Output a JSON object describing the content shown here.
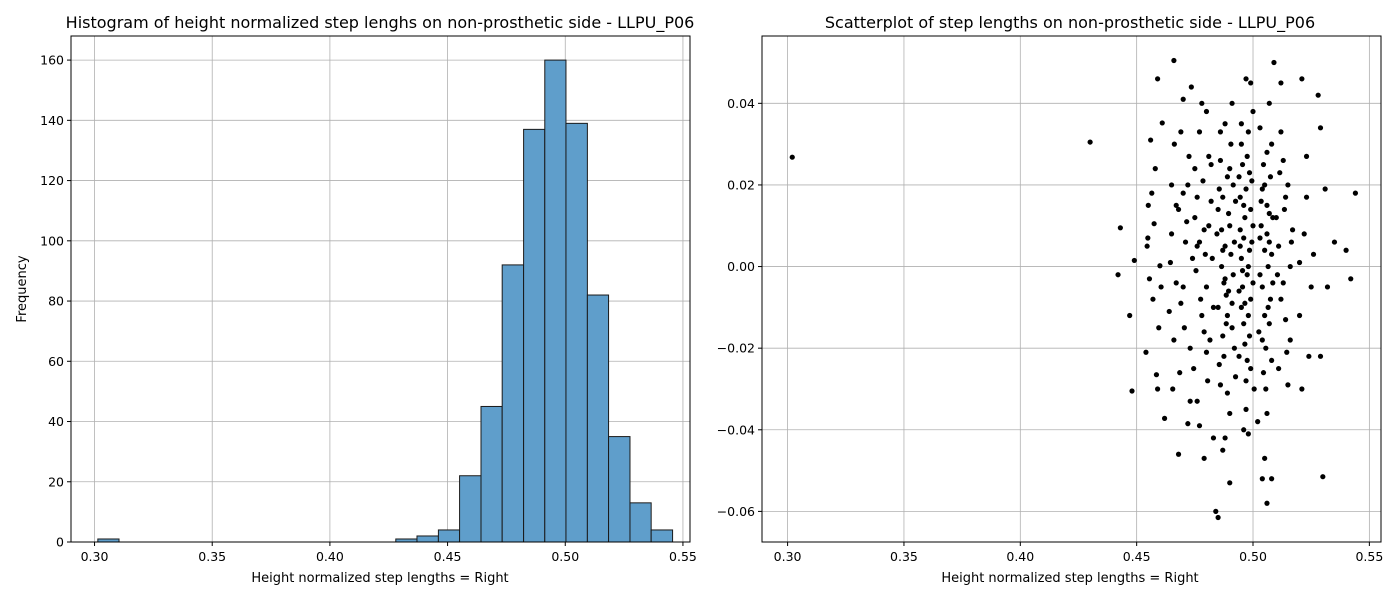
{
  "colors": {
    "bar_fill": "#5f9ecb",
    "bar_edge": "#1a1a1a",
    "point": "#000000",
    "grid": "#b0b0b0"
  },
  "chart_data": [
    {
      "type": "bar",
      "subtype": "histogram",
      "title": "Histogram of height normalized step lenghs on non-prosthetic side - LLPU_P06",
      "xlabel": "Height normalized step lengths = Right",
      "ylabel": "Frequency",
      "xlim": [
        0.29,
        0.553
      ],
      "ylim": [
        0,
        168
      ],
      "xticks": [
        0.3,
        0.35,
        0.4,
        0.45,
        0.5,
        0.55
      ],
      "xtick_labels": [
        "0.30",
        "0.35",
        "0.40",
        "0.45",
        "0.50",
        "0.55"
      ],
      "yticks": [
        0,
        20,
        40,
        60,
        80,
        100,
        120,
        140,
        160
      ],
      "yticks_labels": [
        "0",
        "20",
        "40",
        "60",
        "80",
        "100",
        "120",
        "140",
        "160"
      ],
      "grid": true,
      "bin_edges": [
        0.3014,
        0.3104,
        0.3195,
        0.3285,
        0.3376,
        0.3466,
        0.3557,
        0.3647,
        0.3737,
        0.3828,
        0.3918,
        0.4009,
        0.4099,
        0.419,
        0.428,
        0.437,
        0.4461,
        0.4551,
        0.4642,
        0.4732,
        0.4823,
        0.4913,
        0.5003,
        0.5094,
        0.5184,
        0.5275,
        0.5365,
        0.5456
      ],
      "counts": [
        1,
        0,
        0,
        0,
        0,
        0,
        0,
        0,
        0,
        0,
        0,
        0,
        0,
        0,
        1,
        2,
        4,
        22,
        45,
        92,
        137,
        160,
        139,
        82,
        35,
        13,
        4
      ]
    },
    {
      "type": "scatter",
      "title": "Scatterplot of step lengths on non-prosthetic side - LLPU_P06",
      "xlabel": "Height normalized step lengths = Right",
      "ylabel": "",
      "xlim": [
        0.289,
        0.555
      ],
      "ylim": [
        -0.0675,
        0.0565
      ],
      "xticks": [
        0.3,
        0.35,
        0.4,
        0.45,
        0.5,
        0.55
      ],
      "xtick_labels": [
        "0.30",
        "0.35",
        "0.40",
        "0.45",
        "0.50",
        "0.55"
      ],
      "yticks": [
        -0.06,
        -0.04,
        -0.02,
        0.0,
        0.02,
        0.04
      ],
      "ytick_labels": [
        "−0.06",
        "−0.04",
        "−0.02",
        "0.00",
        "0.02",
        "0.04"
      ],
      "grid": true,
      "note": "y is random jitter around 0; x values follow the histogram distribution",
      "points": [
        [
          0.302,
          0.0268
        ],
        [
          0.43,
          0.0305
        ],
        [
          0.443,
          0.0095
        ],
        [
          0.442,
          -0.002
        ],
        [
          0.447,
          -0.012
        ],
        [
          0.448,
          -0.0305
        ],
        [
          0.449,
          0.0015
        ],
        [
          0.4545,
          0.005
        ],
        [
          0.455,
          0.015
        ],
        [
          0.457,
          -0.008
        ],
        [
          0.454,
          -0.021
        ],
        [
          0.456,
          0.031
        ],
        [
          0.459,
          0.046
        ],
        [
          0.462,
          -0.0372
        ],
        [
          0.458,
          0.024
        ],
        [
          0.4555,
          -0.003
        ],
        [
          0.4595,
          -0.015
        ],
        [
          0.46,
          0.0002
        ],
        [
          0.4575,
          0.0105
        ],
        [
          0.4585,
          -0.0265
        ],
        [
          0.461,
          0.0352
        ],
        [
          0.4548,
          0.007
        ],
        [
          0.4605,
          -0.005
        ],
        [
          0.4565,
          0.018
        ],
        [
          0.459,
          -0.03
        ],
        [
          0.466,
          0.0505
        ],
        [
          0.468,
          -0.046
        ],
        [
          0.47,
          0.041
        ],
        [
          0.472,
          -0.0385
        ],
        [
          0.465,
          0.02
        ],
        [
          0.464,
          -0.011
        ],
        [
          0.469,
          0.033
        ],
        [
          0.471,
          0.006
        ],
        [
          0.473,
          -0.02
        ],
        [
          0.467,
          0.015
        ],
        [
          0.4735,
          0.044
        ],
        [
          0.4655,
          -0.03
        ],
        [
          0.47,
          -0.005
        ],
        [
          0.4725,
          0.027
        ],
        [
          0.4645,
          0.001
        ],
        [
          0.4685,
          -0.026
        ],
        [
          0.4715,
          0.011
        ],
        [
          0.4662,
          0.03
        ],
        [
          0.4705,
          -0.015
        ],
        [
          0.473,
          -0.033
        ],
        [
          0.465,
          0.008
        ],
        [
          0.469,
          -0.009
        ],
        [
          0.472,
          0.02
        ],
        [
          0.467,
          -0.004
        ],
        [
          0.47,
          0.018
        ],
        [
          0.474,
          0.002
        ],
        [
          0.468,
          0.014
        ],
        [
          0.466,
          -0.018
        ],
        [
          0.477,
          -0.039
        ],
        [
          0.475,
          0.024
        ],
        [
          0.479,
          -0.047
        ],
        [
          0.48,
          0.038
        ],
        [
          0.483,
          -0.042
        ],
        [
          0.481,
          0.027
        ],
        [
          0.476,
          0.005
        ],
        [
          0.478,
          -0.012
        ],
        [
          0.482,
          0.016
        ],
        [
          0.4745,
          -0.025
        ],
        [
          0.48,
          -0.005
        ],
        [
          0.477,
          0.033
        ],
        [
          0.479,
          0.009
        ],
        [
          0.476,
          -0.033
        ],
        [
          0.4815,
          -0.018
        ],
        [
          0.475,
          0.012
        ],
        [
          0.4785,
          0.021
        ],
        [
          0.4805,
          -0.028
        ],
        [
          0.4825,
          0.002
        ],
        [
          0.4775,
          -0.008
        ],
        [
          0.4795,
          0.003
        ],
        [
          0.481,
          0.01
        ],
        [
          0.476,
          0.017
        ],
        [
          0.483,
          -0.01
        ],
        [
          0.478,
          0.04
        ],
        [
          0.4755,
          -0.001
        ],
        [
          0.48,
          -0.021
        ],
        [
          0.482,
          0.025
        ],
        [
          0.477,
          0.006
        ],
        [
          0.479,
          -0.016
        ],
        [
          0.484,
          -0.06
        ],
        [
          0.485,
          -0.0615
        ],
        [
          0.487,
          -0.045
        ],
        [
          0.488,
          -0.042
        ],
        [
          0.486,
          0.033
        ],
        [
          0.49,
          -0.053
        ],
        [
          0.491,
          0.04
        ],
        [
          0.489,
          -0.031
        ],
        [
          0.487,
          0.017
        ],
        [
          0.485,
          -0.01
        ],
        [
          0.488,
          0.005
        ],
        [
          0.492,
          -0.02
        ],
        [
          0.486,
          0.026
        ],
        [
          0.49,
          0.01
        ],
        [
          0.4895,
          -0.006
        ],
        [
          0.4855,
          -0.024
        ],
        [
          0.4875,
          -0.004
        ],
        [
          0.4915,
          0.02
        ],
        [
          0.4845,
          0.008
        ],
        [
          0.4885,
          -0.014
        ],
        [
          0.4905,
          0.03
        ],
        [
          0.4865,
          0.0
        ],
        [
          0.4925,
          -0.027
        ],
        [
          0.485,
          0.014
        ],
        [
          0.489,
          0.022
        ],
        [
          0.487,
          -0.017
        ],
        [
          0.491,
          -0.009
        ],
        [
          0.488,
          0.035
        ],
        [
          0.49,
          -0.036
        ],
        [
          0.486,
          -0.029
        ],
        [
          0.492,
          0.006
        ],
        [
          0.4895,
          0.013
        ],
        [
          0.4875,
          -0.022
        ],
        [
          0.4915,
          -0.002
        ],
        [
          0.4855,
          0.019
        ],
        [
          0.4885,
          -0.007
        ],
        [
          0.4905,
          0.003
        ],
        [
          0.4865,
          0.009
        ],
        [
          0.4925,
          0.016
        ],
        [
          0.489,
          -0.012
        ],
        [
          0.49,
          0.024
        ],
        [
          0.487,
          0.004
        ],
        [
          0.491,
          -0.015
        ],
        [
          0.488,
          -0.003
        ],
        [
          0.497,
          0.046
        ],
        [
          0.499,
          0.045
        ],
        [
          0.498,
          -0.041
        ],
        [
          0.496,
          -0.04
        ],
        [
          0.495,
          0.03
        ],
        [
          0.494,
          0.022
        ],
        [
          0.497,
          -0.035
        ],
        [
          0.5,
          0.038
        ],
        [
          0.499,
          -0.025
        ],
        [
          0.496,
          0.015
        ],
        [
          0.498,
          0.0
        ],
        [
          0.495,
          -0.01
        ],
        [
          0.4945,
          0.009
        ],
        [
          0.4975,
          0.027
        ],
        [
          0.4985,
          -0.017
        ],
        [
          0.4955,
          -0.005
        ],
        [
          0.4965,
          0.012
        ],
        [
          0.4995,
          0.006
        ],
        [
          0.494,
          -0.022
        ],
        [
          0.5005,
          -0.03
        ],
        [
          0.497,
          0.019
        ],
        [
          0.496,
          -0.014
        ],
        [
          0.498,
          0.033
        ],
        [
          0.495,
          0.002
        ],
        [
          0.499,
          -0.008
        ],
        [
          0.4945,
          0.017
        ],
        [
          0.4975,
          -0.002
        ],
        [
          0.5,
          0.01
        ],
        [
          0.4955,
          0.025
        ],
        [
          0.4985,
          0.004
        ],
        [
          0.4965,
          -0.019
        ],
        [
          0.4995,
          0.021
        ],
        [
          0.494,
          -0.006
        ],
        [
          0.497,
          -0.028
        ],
        [
          0.496,
          0.007
        ],
        [
          0.498,
          -0.012
        ],
        [
          0.495,
          0.035
        ],
        [
          0.499,
          0.014
        ],
        [
          0.5,
          -0.004
        ],
        [
          0.4975,
          -0.023
        ],
        [
          0.4955,
          -0.001
        ],
        [
          0.4985,
          0.023
        ],
        [
          0.4965,
          -0.009
        ],
        [
          0.4945,
          0.005
        ],
        [
          0.504,
          -0.052
        ],
        [
          0.506,
          -0.058
        ],
        [
          0.508,
          -0.052
        ],
        [
          0.505,
          -0.047
        ],
        [
          0.507,
          0.04
        ],
        [
          0.509,
          0.05
        ],
        [
          0.503,
          0.034
        ],
        [
          0.502,
          -0.038
        ],
        [
          0.506,
          -0.036
        ],
        [
          0.508,
          0.03
        ],
        [
          0.504,
          0.019
        ],
        [
          0.505,
          -0.012
        ],
        [
          0.507,
          0.006
        ],
        [
          0.503,
          -0.002
        ],
        [
          0.506,
          0.015
        ],
        [
          0.508,
          -0.023
        ],
        [
          0.5045,
          0.025
        ],
        [
          0.5075,
          -0.008
        ],
        [
          0.5035,
          0.01
        ],
        [
          0.5055,
          -0.03
        ],
        [
          0.5065,
          0.0
        ],
        [
          0.5025,
          -0.016
        ],
        [
          0.5085,
          0.012
        ],
        [
          0.505,
          0.02
        ],
        [
          0.507,
          -0.014
        ],
        [
          0.504,
          -0.005
        ],
        [
          0.506,
          0.028
        ],
        [
          0.508,
          0.003
        ],
        [
          0.503,
          0.007
        ],
        [
          0.5055,
          -0.02
        ],
        [
          0.5075,
          0.022
        ],
        [
          0.5045,
          -0.026
        ],
        [
          0.5065,
          -0.01
        ],
        [
          0.5035,
          0.016
        ],
        [
          0.5085,
          -0.004
        ],
        [
          0.505,
          0.004
        ],
        [
          0.507,
          0.013
        ],
        [
          0.504,
          -0.018
        ],
        [
          0.506,
          0.008
        ],
        [
          0.512,
          0.045
        ],
        [
          0.513,
          0.026
        ],
        [
          0.511,
          -0.025
        ],
        [
          0.514,
          0.017
        ],
        [
          0.515,
          -0.029
        ],
        [
          0.51,
          0.012
        ],
        [
          0.516,
          0.0
        ],
        [
          0.512,
          -0.008
        ],
        [
          0.517,
          0.009
        ],
        [
          0.514,
          -0.013
        ],
        [
          0.511,
          0.005
        ],
        [
          0.513,
          -0.004
        ],
        [
          0.515,
          0.02
        ],
        [
          0.512,
          0.033
        ],
        [
          0.516,
          -0.018
        ],
        [
          0.5105,
          -0.002
        ],
        [
          0.5135,
          0.014
        ],
        [
          0.5145,
          -0.021
        ],
        [
          0.5115,
          0.023
        ],
        [
          0.5165,
          0.006
        ],
        [
          0.521,
          0.046
        ],
        [
          0.523,
          0.017
        ],
        [
          0.52,
          -0.012
        ],
        [
          0.524,
          -0.022
        ],
        [
          0.522,
          0.008
        ],
        [
          0.525,
          -0.005
        ],
        [
          0.526,
          0.003
        ],
        [
          0.521,
          -0.03
        ],
        [
          0.523,
          0.027
        ],
        [
          0.52,
          0.001
        ],
        [
          0.53,
          -0.0515
        ],
        [
          0.528,
          0.042
        ],
        [
          0.529,
          0.034
        ],
        [
          0.531,
          0.019
        ],
        [
          0.532,
          -0.005
        ],
        [
          0.529,
          -0.022
        ],
        [
          0.535,
          0.006
        ],
        [
          0.54,
          0.004
        ],
        [
          0.542,
          -0.003
        ],
        [
          0.544,
          0.018
        ]
      ]
    }
  ]
}
